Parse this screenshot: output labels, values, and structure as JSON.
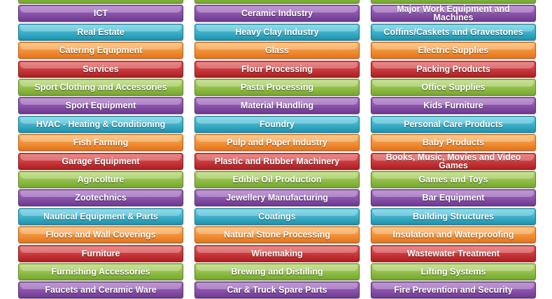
{
  "colors": {
    "purple": "#7c44a0",
    "teal": "#2ba6c2",
    "orange": "#f08a2a",
    "red": "#c0282c",
    "green": "#86b83c"
  },
  "columns": [
    {
      "items": [
        {
          "label": "",
          "color": "green"
        },
        {
          "label": "ICT",
          "color": "purple"
        },
        {
          "label": "Real Estate",
          "color": "teal"
        },
        {
          "label": "Catering Equipment",
          "color": "orange"
        },
        {
          "label": "Services",
          "color": "red"
        },
        {
          "label": "Sport Clothing and Accessories",
          "color": "green"
        },
        {
          "label": "Sport Equipment",
          "color": "purple"
        },
        {
          "label": "HVAC - Heating & Conditioning",
          "color": "teal"
        },
        {
          "label": "Fish Farming",
          "color": "orange"
        },
        {
          "label": "Garage Equipment",
          "color": "red"
        },
        {
          "label": "Agricolture",
          "color": "green"
        },
        {
          "label": "Zootechnics",
          "color": "purple"
        },
        {
          "label": "Nautical Equipment & Parts",
          "color": "teal"
        },
        {
          "label": "Floors and Wall Coverings",
          "color": "orange"
        },
        {
          "label": "Furniture",
          "color": "red"
        },
        {
          "label": "Furnishing Accessories",
          "color": "green"
        },
        {
          "label": "Faucets and Ceramic Ware",
          "color": "purple"
        }
      ]
    },
    {
      "items": [
        {
          "label": "",
          "color": "green"
        },
        {
          "label": "Ceramic Industry",
          "color": "purple"
        },
        {
          "label": "Heavy Clay Industry",
          "color": "teal"
        },
        {
          "label": "Glass",
          "color": "orange"
        },
        {
          "label": "Flour Processing",
          "color": "red"
        },
        {
          "label": "Pasta Processing",
          "color": "green"
        },
        {
          "label": "Material Handling",
          "color": "purple"
        },
        {
          "label": "Foundry",
          "color": "teal"
        },
        {
          "label": "Pulp and Paper Industry",
          "color": "orange"
        },
        {
          "label": "Plastic and Rubber Machinery",
          "color": "red"
        },
        {
          "label": "Edible Oil Production",
          "color": "green"
        },
        {
          "label": "Jewellery Manufacturing",
          "color": "purple"
        },
        {
          "label": "Coatings",
          "color": "teal"
        },
        {
          "label": "Natural Stone Processing",
          "color": "orange"
        },
        {
          "label": "Winemaking",
          "color": "red"
        },
        {
          "label": "Brewing and Distilling",
          "color": "green"
        },
        {
          "label": "Car & Truck Spare Parts",
          "color": "purple"
        }
      ]
    },
    {
      "items": [
        {
          "label": "",
          "color": "green"
        },
        {
          "label": "Major Work Equipment and Machines",
          "color": "purple"
        },
        {
          "label": "Coffins/Caskets and Gravestones",
          "color": "teal"
        },
        {
          "label": "Electric Supplies",
          "color": "orange"
        },
        {
          "label": "Packing Products",
          "color": "red"
        },
        {
          "label": "Office Supplies",
          "color": "green"
        },
        {
          "label": "Kids Furniture",
          "color": "purple"
        },
        {
          "label": "Personal Care Products",
          "color": "teal"
        },
        {
          "label": "Baby Products",
          "color": "orange"
        },
        {
          "label": "Books, Music, Movies and Video Games",
          "color": "red"
        },
        {
          "label": "Games and Toys",
          "color": "green"
        },
        {
          "label": "Bar Equipment",
          "color": "purple"
        },
        {
          "label": "Building Structures",
          "color": "teal"
        },
        {
          "label": "Insulation and Waterproofing",
          "color": "orange"
        },
        {
          "label": "Wastewater Treatment",
          "color": "red"
        },
        {
          "label": "Lifting Systems",
          "color": "green"
        },
        {
          "label": "Fire Prevention and Security",
          "color": "purple"
        }
      ]
    }
  ]
}
